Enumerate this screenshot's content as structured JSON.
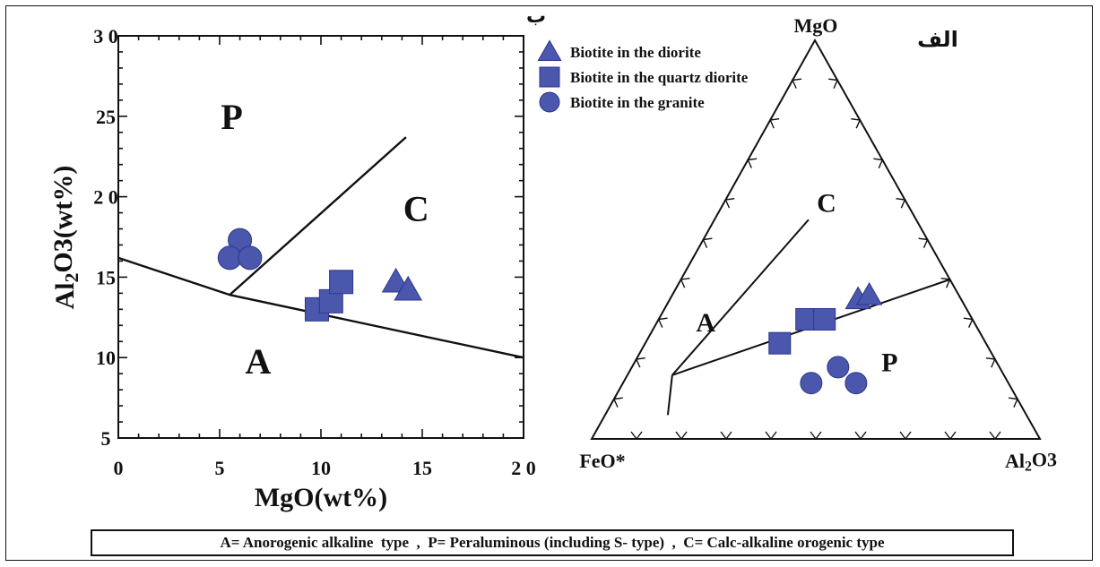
{
  "chart_data": [
    {
      "type": "scatter",
      "panel_label": "ب",
      "xlabel": "MgO(wt%)",
      "ylabel": "Al2O3(wt%)",
      "xlim": [
        0,
        20
      ],
      "ylim": [
        5,
        30
      ],
      "x_ticks": [
        "0",
        "5",
        "10",
        "15",
        "2 0"
      ],
      "y_ticks": [
        "5",
        "10",
        "15",
        "2 0",
        "25",
        "3 0"
      ],
      "field_labels": [
        {
          "text": "P",
          "x": 5.6,
          "y": 24.2
        },
        {
          "text": "C",
          "x": 14.7,
          "y": 18.5
        },
        {
          "text": "A",
          "x": 6.9,
          "y": 9.0
        }
      ],
      "boundaries": [
        [
          [
            0,
            16.2
          ],
          [
            5.5,
            13.9
          ],
          [
            20,
            10.0
          ]
        ],
        [
          [
            5.5,
            13.9
          ],
          [
            14.2,
            23.7
          ]
        ]
      ],
      "series": [
        {
          "name": "Biotite in the granite",
          "marker": "circle",
          "points": [
            [
              6.0,
              17.3
            ],
            [
              5.5,
              16.2
            ],
            [
              6.5,
              16.2
            ]
          ]
        },
        {
          "name": "Biotite in the quartz diorite",
          "marker": "square",
          "points": [
            [
              9.8,
              13.0
            ],
            [
              10.5,
              13.5
            ],
            [
              11.0,
              14.7
            ]
          ]
        },
        {
          "name": "Biotite in the diorite",
          "marker": "triangle",
          "points": [
            [
              13.7,
              14.7
            ],
            [
              14.3,
              14.2
            ]
          ]
        }
      ]
    },
    {
      "type": "scatter",
      "subtype": "ternary",
      "panel_label": "الف",
      "apex_labels": {
        "top": "MgO",
        "left": "FeO*",
        "right": "Al2O3"
      },
      "field_labels": [
        {
          "text": "C",
          "mgo": 0.57,
          "al2o3": 0.24
        },
        {
          "text": "A",
          "mgo": 0.27,
          "al2o3": 0.12
        },
        {
          "text": "P",
          "mgo": 0.17,
          "al2o3": 0.58
        }
      ],
      "boundaries": [
        [
          [
            0.16,
            0.1
          ],
          [
            0.06,
            0.14
          ]
        ],
        [
          [
            0.16,
            0.1
          ],
          [
            0.55,
            0.21
          ]
        ],
        [
          [
            0.16,
            0.1
          ],
          [
            0.4,
            0.6
          ]
        ]
      ],
      "series": [
        {
          "name": "Biotite in the granite",
          "marker": "circle",
          "points": [
            [
              0.14,
              0.42
            ],
            [
              0.18,
              0.46
            ],
            [
              0.14,
              0.52
            ]
          ]
        },
        {
          "name": "Biotite in the quartz diorite",
          "marker": "square",
          "points": [
            [
              0.24,
              0.3
            ],
            [
              0.3,
              0.33
            ],
            [
              0.3,
              0.37
            ]
          ]
        },
        {
          "name": "Biotite in the diorite",
          "marker": "triangle",
          "points": [
            [
              0.35,
              0.42
            ],
            [
              0.36,
              0.44
            ]
          ]
        }
      ]
    }
  ],
  "legend": {
    "placement": "top-center",
    "items": [
      {
        "label": "Biotite in the diorite",
        "marker": "triangle"
      },
      {
        "label": "Biotite in the quartz diorite",
        "marker": "square"
      },
      {
        "label": "Biotite in the  granite",
        "marker": "circle"
      }
    ]
  },
  "footnote": "A= Anorogenic alkaline  type  ,  P= Peraluminous (including S- type)  ,  C= Calc-alkaline orogenic type",
  "colors": {
    "marker": "#4a57ad",
    "marker_edge": "#2d3789",
    "line": "#111111"
  }
}
